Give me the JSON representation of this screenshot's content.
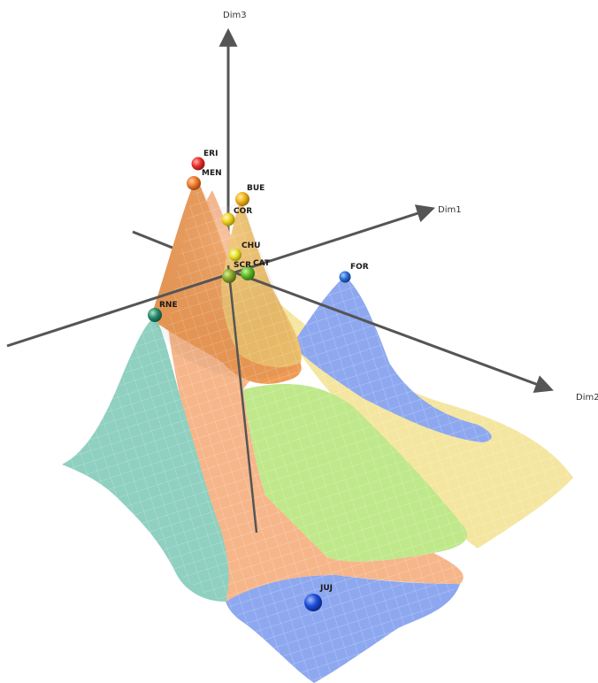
{
  "axes": {
    "dim1": "Dim1",
    "dim2": "Dim2",
    "dim3": "Dim3"
  },
  "points": [
    {
      "id": "eri",
      "label": "ERI",
      "color": "#e8302a"
    },
    {
      "id": "men",
      "label": "MEN",
      "color": "#ef7a2a"
    },
    {
      "id": "bue",
      "label": "BUE",
      "color": "#f2b21c"
    },
    {
      "id": "cor",
      "label": "COR",
      "color": "#f0d21a"
    },
    {
      "id": "chu",
      "label": "CHU",
      "color": "#e8e22a"
    },
    {
      "id": "scr",
      "label": "SCR",
      "color": "#8aa828"
    },
    {
      "id": "cat",
      "label": "CAT",
      "color": "#5fb82a"
    },
    {
      "id": "for",
      "label": "FOR",
      "color": "#2a6fd6"
    },
    {
      "id": "rne",
      "label": "RNE",
      "color": "#2a8a6a"
    },
    {
      "id": "juj",
      "label": "JUJ",
      "color": "#1f4fd8"
    }
  ],
  "regions": {
    "teal": "#8fd0c0",
    "peach": "#f6b68a",
    "green": "#bfe88a",
    "yellow": "#f4e6a0",
    "blue": "#8ea8f0",
    "orange": "#ee9a55"
  }
}
